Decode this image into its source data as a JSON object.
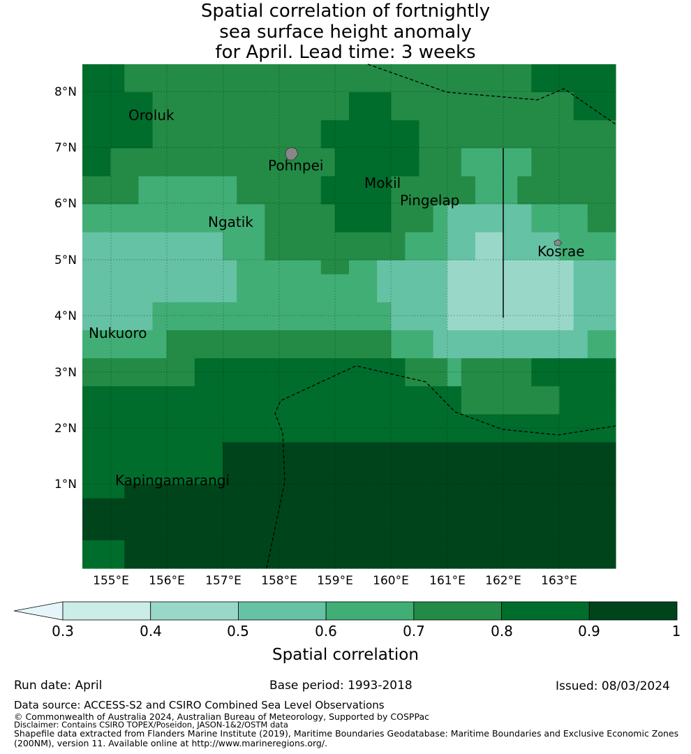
{
  "title_lines": [
    "Spatial correlation of fortnightly",
    "sea surface height anomaly",
    "for April. Lead time: 3 weeks"
  ],
  "map": {
    "lon_labels": [
      "155°E",
      "156°E",
      "157°E",
      "158°E",
      "159°E",
      "160°E",
      "161°E",
      "162°E",
      "163°E"
    ],
    "lat_labels": [
      "8°N",
      "7°N",
      "6°N",
      "5°N",
      "4°N",
      "3°N",
      "2°N",
      "1°N"
    ],
    "places": [
      {
        "name": "Oroluk"
      },
      {
        "name": "Pohnpei"
      },
      {
        "name": "Mokil"
      },
      {
        "name": "Pingelap"
      },
      {
        "name": "Ngatik"
      },
      {
        "name": "Kosrae"
      },
      {
        "name": "Nukuoro"
      },
      {
        "name": "Kapingamarangi"
      }
    ],
    "color_scale": [
      "#e5f5f9",
      "#ccece6",
      "#99d8c9",
      "#66c2a4",
      "#41ae76",
      "#238b45",
      "#006d2c",
      "#00441b"
    ]
  },
  "colorbar": {
    "ticks": [
      "0.3",
      "0.4",
      "0.5",
      "0.6",
      "0.7",
      "0.8",
      "0.9",
      "1"
    ],
    "label": "Spatial correlation"
  },
  "footer": {
    "run_date": "Run date: April",
    "base_period": "Base period: 1993-2018",
    "issued": "Issued: 08/03/2024",
    "data_source": "Data source: ACCESS-S2 and CSIRO Combined Sea Level Observations",
    "copyright": "© Commonwealth of Australia 2024, Australian Bureau of Meteorology, Supported by COSPPac",
    "disclaimer": "Disclaimer: Contains CSIRO TOPEX/Poseidon, JASON-1&2/OSTM data",
    "shapefile1": "Shapefile data extracted from Flanders Marine Institute (2019), Maritime Boundaries Geodatabase: Maritime Boundaries and Exclusive Economic Zones",
    "shapefile2": "(200NM), version 11. Available online at http://www.marineregions.org/."
  }
}
